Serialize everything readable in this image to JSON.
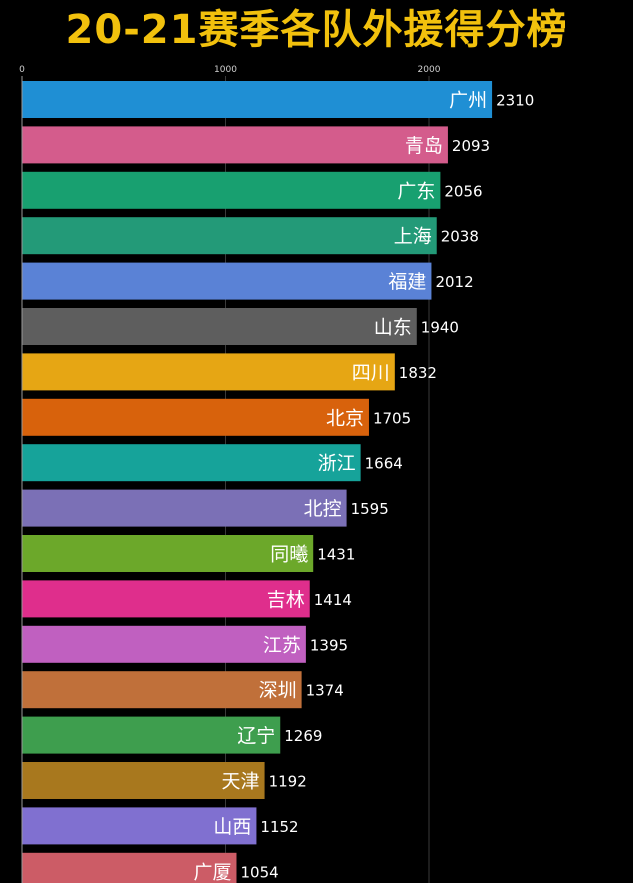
{
  "header": {
    "title": "20-21赛季各队外援得分榜"
  },
  "chart_data": {
    "type": "bar",
    "orientation": "horizontal",
    "title": "20-21赛季各队外援得分榜",
    "xlim": [
      0,
      2500
    ],
    "xticks": [
      0,
      1000,
      2000
    ],
    "xtick_labels": [
      "0",
      "1000",
      "2000"
    ],
    "grid": true,
    "categories": [
      "广州",
      "青岛",
      "广东",
      "上海",
      "福建",
      "山东",
      "四川",
      "北京",
      "浙江",
      "北控",
      "同曦",
      "吉林",
      "江苏",
      "深圳",
      "辽宁",
      "天津",
      "山西",
      "广厦"
    ],
    "values": [
      2310,
      2093,
      2056,
      2038,
      2012,
      1940,
      1832,
      1705,
      1664,
      1595,
      1431,
      1414,
      1395,
      1374,
      1269,
      1192,
      1152,
      1054
    ],
    "colors": [
      "#1f8fd4",
      "#d45c8c",
      "#18a070",
      "#239a78",
      "#5a82d6",
      "#5e5e5e",
      "#e6a614",
      "#d8620c",
      "#16a39a",
      "#7b70b6",
      "#6ca82a",
      "#df2e8c",
      "#c060c0",
      "#c0703a",
      "#3e9e4e",
      "#a8781e",
      "#8070d0",
      "#cc5c66"
    ],
    "value_labels": [
      "2310",
      "2093",
      "2056",
      "2038",
      "2012",
      "1940",
      "1832",
      "1705",
      "1664",
      "1595",
      "1431",
      "1414",
      "1395",
      "1374",
      "1269",
      "1192",
      "1152",
      "1054"
    ]
  }
}
